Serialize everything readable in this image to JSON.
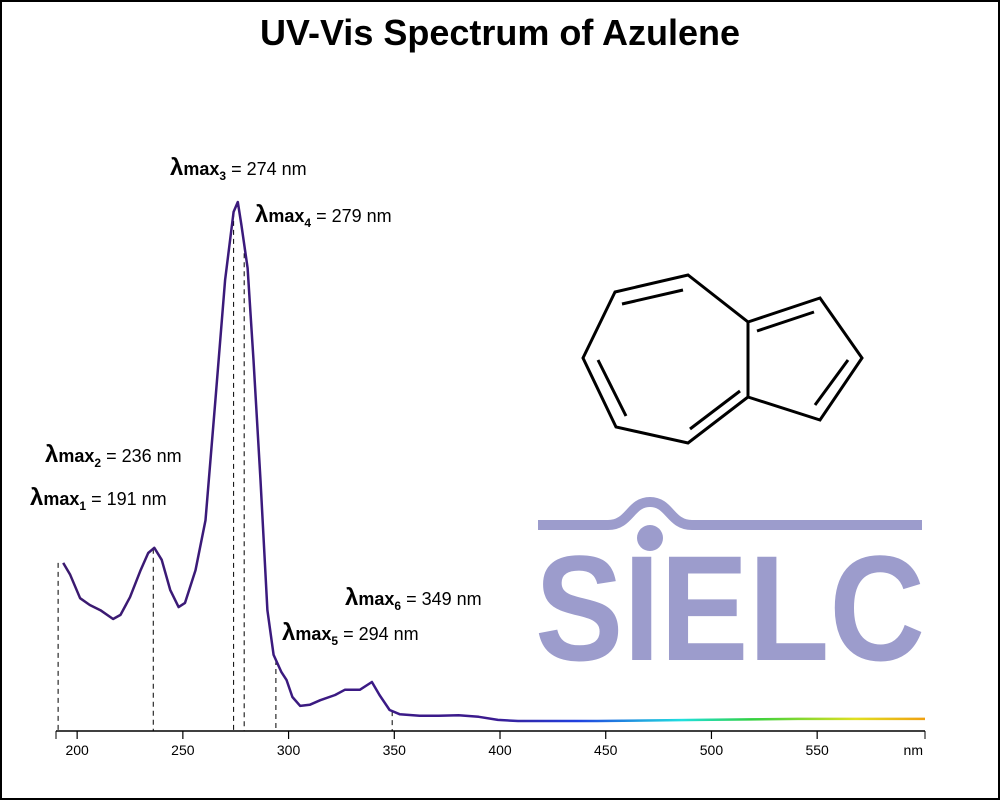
{
  "chart_data": {
    "type": "line",
    "title": "UV-Vis Spectrum of Azulene",
    "x_label": "nm",
    "x": [
      193.4,
      196.7,
      201.4,
      206,
      211,
      217,
      220.5,
      225,
      230,
      233.6,
      236.5,
      240,
      244,
      248,
      251,
      256,
      260.7,
      265.4,
      270,
      274,
      276,
      277.7,
      280.6,
      283.4,
      286.7,
      290,
      292.9,
      296.6,
      299,
      301.8,
      305.5,
      310,
      315,
      322,
      326.6,
      333.7,
      339.4,
      343,
      347.8,
      352.5,
      362,
      371,
      380.4,
      389.9,
      399,
      408.5,
      446,
      494,
      541,
      601
    ],
    "series": [
      {
        "color": "#3b1a6e",
        "values": [
          0.306,
          0.283,
          0.238,
          0.225,
          0.215,
          0.198,
          0.206,
          0.24,
          0.292,
          0.325,
          0.335,
          0.312,
          0.254,
          0.221,
          0.229,
          0.292,
          0.388,
          0.619,
          0.85,
          0.981,
          1.0,
          0.956,
          0.873,
          0.696,
          0.465,
          0.215,
          0.129,
          0.096,
          0.081,
          0.048,
          0.031,
          0.033,
          0.042,
          0.052,
          0.062,
          0.062,
          0.077,
          0.052,
          0.023,
          0.015,
          0.012,
          0.012,
          0.013,
          0.01,
          0.004,
          0.002,
          0.002,
          0.004,
          0.006,
          0.006
        ]
      }
    ],
    "xlim": [
      190,
      601
    ],
    "xticks": [
      200,
      250,
      300,
      350,
      400,
      450,
      500,
      550
    ],
    "ylim": [
      0,
      1
    ],
    "annotations": [
      {
        "symbol": "λ",
        "label": "max",
        "sub": "1",
        "text": "= 191 nm",
        "wavelength": 191
      },
      {
        "symbol": "λ",
        "label": "max",
        "sub": "2",
        "text": "= 236 nm",
        "wavelength": 236
      },
      {
        "symbol": "λ",
        "label": "max",
        "sub": "3",
        "text": "= 274 nm",
        "wavelength": 274
      },
      {
        "symbol": "λ",
        "label": "max",
        "sub": "4",
        "text": "= 279 nm",
        "wavelength": 279
      },
      {
        "symbol": "λ",
        "label": "max",
        "sub": "5",
        "text": "= 294 nm",
        "wavelength": 294
      },
      {
        "symbol": "λ",
        "label": "max",
        "sub": "6",
        "text": "= 349 nm",
        "wavelength": 349
      }
    ],
    "logo": "SIELC"
  }
}
